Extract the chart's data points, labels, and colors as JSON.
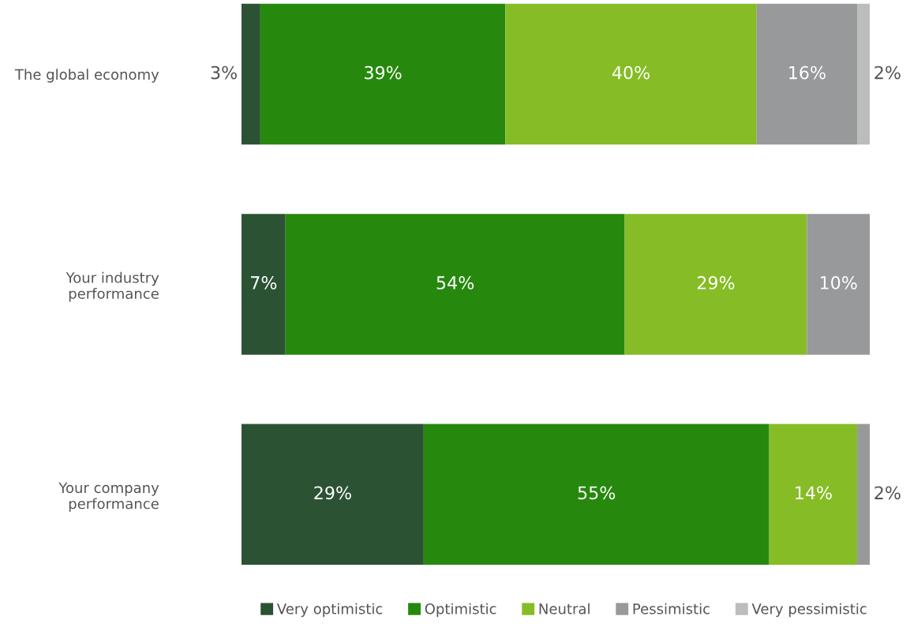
{
  "chart_data": {
    "type": "bar",
    "orientation": "horizontal",
    "stacked": true,
    "categories": [
      "The global economy",
      "Your industry\nperformance",
      "Your company\nperformance"
    ],
    "series": [
      {
        "name": "Very optimistic",
        "color": "#2c5234",
        "values": [
          3,
          7,
          29
        ],
        "value_labels": [
          "3%",
          "7%",
          "29%"
        ]
      },
      {
        "name": "Optimistic",
        "color": "#26890d",
        "values": [
          39,
          54,
          55
        ],
        "value_labels": [
          "39%",
          "54%",
          "55%"
        ]
      },
      {
        "name": "Neutral",
        "color": "#86bc25",
        "values": [
          40,
          29,
          14
        ],
        "value_labels": [
          "40%",
          "29%",
          "14%"
        ]
      },
      {
        "name": "Pessimistic",
        "color": "#97999b",
        "values": [
          16,
          10,
          2
        ],
        "value_labels": [
          "16%",
          "10%",
          "2%"
        ]
      },
      {
        "name": "Very pessimistic",
        "color": "#bbbcbc",
        "values": [
          2,
          null,
          null
        ],
        "value_labels": [
          "2%",
          null,
          null
        ]
      }
    ],
    "tick_labels": "y",
    "legend": "bottom",
    "grid": false
  }
}
